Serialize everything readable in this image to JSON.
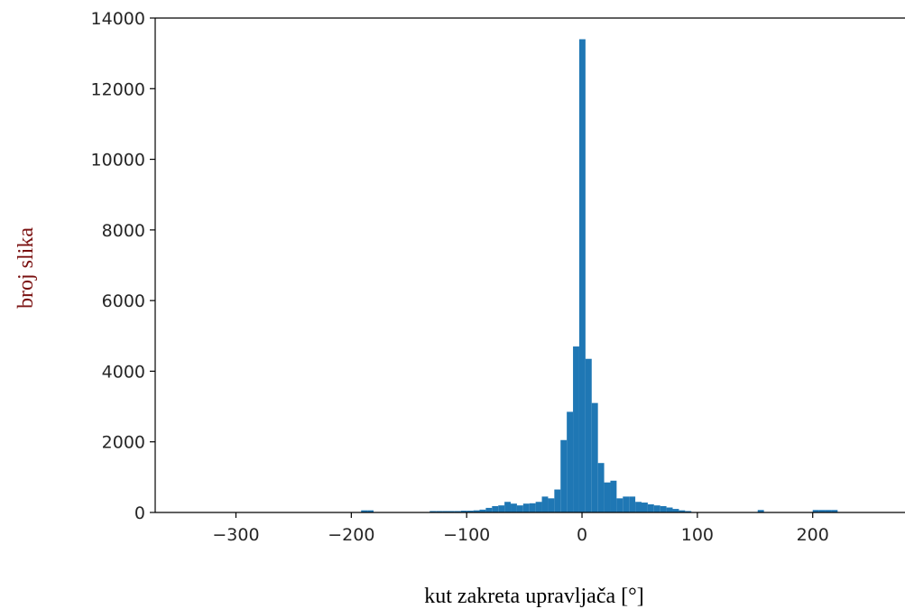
{
  "chart_data": {
    "type": "bar",
    "title": "",
    "xlabel": "kut zakreta upravljača [°]",
    "ylabel": "broj slika",
    "xlim": [
      -370,
      280
    ],
    "ylim": [
      0,
      14000
    ],
    "xticks": [
      -300,
      -200,
      -100,
      0,
      100,
      200
    ],
    "xtick_labels": [
      "−300",
      "−200",
      "−100",
      "0",
      "100",
      "200"
    ],
    "yticks": [
      0,
      2000,
      4000,
      6000,
      8000,
      10000,
      12000,
      14000
    ],
    "ytick_labels": [
      "0",
      "2000",
      "4000",
      "6000",
      "8000",
      "10000",
      "12000",
      "14000"
    ],
    "bar_color": "#1f77b4",
    "bin_width": 5.4,
    "bins": [
      {
        "x0": -191.5,
        "value": 60
      },
      {
        "x0": -186.1,
        "value": 60
      },
      {
        "x0": -132.0,
        "value": 40
      },
      {
        "x0": -126.6,
        "value": 40
      },
      {
        "x0": -121.2,
        "value": 40
      },
      {
        "x0": -115.8,
        "value": 40
      },
      {
        "x0": -110.4,
        "value": 40
      },
      {
        "x0": -105.0,
        "value": 50
      },
      {
        "x0": -99.6,
        "value": 50
      },
      {
        "x0": -94.2,
        "value": 60
      },
      {
        "x0": -88.8,
        "value": 80
      },
      {
        "x0": -83.4,
        "value": 130
      },
      {
        "x0": -78.0,
        "value": 180
      },
      {
        "x0": -72.6,
        "value": 200
      },
      {
        "x0": -67.2,
        "value": 300
      },
      {
        "x0": -61.8,
        "value": 250
      },
      {
        "x0": -56.4,
        "value": 200
      },
      {
        "x0": -51.0,
        "value": 250
      },
      {
        "x0": -45.6,
        "value": 260
      },
      {
        "x0": -40.2,
        "value": 300
      },
      {
        "x0": -34.8,
        "value": 450
      },
      {
        "x0": -29.4,
        "value": 400
      },
      {
        "x0": -24.0,
        "value": 650
      },
      {
        "x0": -18.6,
        "value": 2050
      },
      {
        "x0": -13.2,
        "value": 2850
      },
      {
        "x0": -7.8,
        "value": 4700
      },
      {
        "x0": -2.4,
        "value": 13400
      },
      {
        "x0": 3.0,
        "value": 4350
      },
      {
        "x0": 8.4,
        "value": 3100
      },
      {
        "x0": 13.8,
        "value": 1400
      },
      {
        "x0": 19.2,
        "value": 850
      },
      {
        "x0": 24.6,
        "value": 900
      },
      {
        "x0": 30.0,
        "value": 400
      },
      {
        "x0": 35.4,
        "value": 450
      },
      {
        "x0": 40.8,
        "value": 450
      },
      {
        "x0": 46.2,
        "value": 300
      },
      {
        "x0": 51.6,
        "value": 280
      },
      {
        "x0": 57.0,
        "value": 230
      },
      {
        "x0": 62.4,
        "value": 200
      },
      {
        "x0": 67.8,
        "value": 180
      },
      {
        "x0": 73.2,
        "value": 140
      },
      {
        "x0": 78.6,
        "value": 100
      },
      {
        "x0": 84.0,
        "value": 60
      },
      {
        "x0": 89.4,
        "value": 40
      },
      {
        "x0": 152.3,
        "value": 70
      },
      {
        "x0": 200.0,
        "value": 70
      },
      {
        "x0": 205.4,
        "value": 70
      },
      {
        "x0": 210.8,
        "value": 70
      },
      {
        "x0": 216.2,
        "value": 70
      }
    ]
  }
}
